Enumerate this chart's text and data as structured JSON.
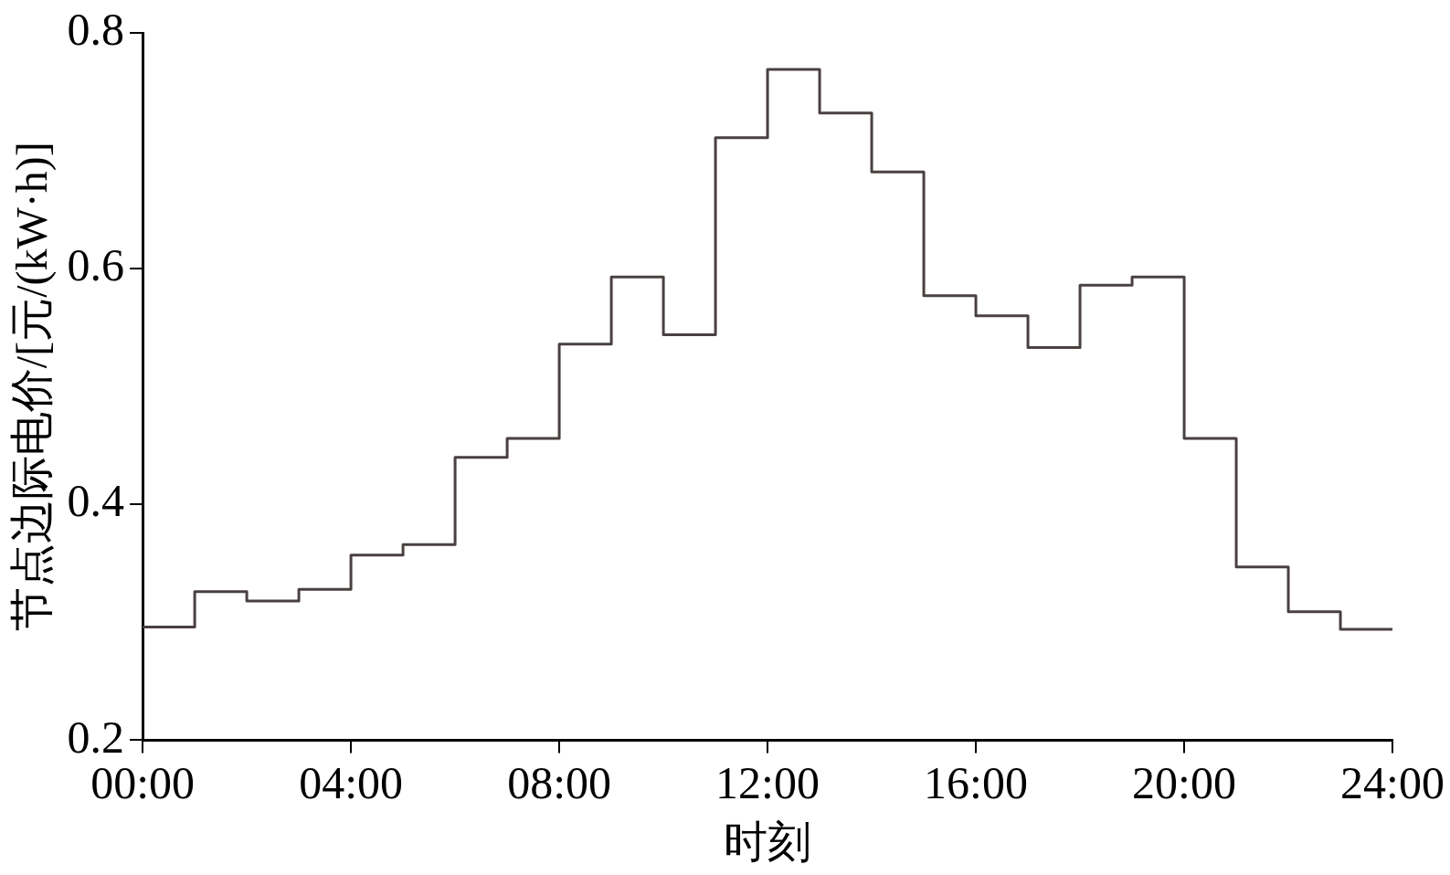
{
  "chart_data": {
    "type": "step",
    "xlabel": "时刻",
    "ylabel": "节点边际电价/[元/(kW·h)]",
    "x": [
      0,
      1,
      2,
      3,
      4,
      5,
      6,
      7,
      8,
      9,
      10,
      11,
      12,
      13,
      14,
      15,
      16,
      17,
      18,
      19,
      20,
      21,
      22,
      23,
      24
    ],
    "series": [
      {
        "color": "#4a4040",
        "values": [
          0.296,
          0.326,
          0.318,
          0.328,
          0.357,
          0.366,
          0.44,
          0.456,
          0.536,
          0.593,
          0.544,
          0.711,
          0.769,
          0.732,
          0.682,
          0.577,
          0.56,
          0.533,
          0.586,
          0.593,
          0.456,
          0.347,
          0.309,
          0.294,
          0.294
        ]
      }
    ],
    "xlim": [
      0,
      24
    ],
    "xticks": [
      {
        "value": 0,
        "label": "00:00"
      },
      {
        "value": 4,
        "label": "04:00"
      },
      {
        "value": 8,
        "label": "08:00"
      },
      {
        "value": 12,
        "label": "12:00"
      },
      {
        "value": 16,
        "label": "16:00"
      },
      {
        "value": 20,
        "label": "20:00"
      },
      {
        "value": 24,
        "label": "24:00"
      }
    ],
    "ylim": [
      0.2,
      0.8
    ],
    "yticks": [
      0.2,
      0.4,
      0.6,
      0.8
    ],
    "grid": false,
    "legend": false,
    "marker": "none",
    "line_style": "solid"
  }
}
